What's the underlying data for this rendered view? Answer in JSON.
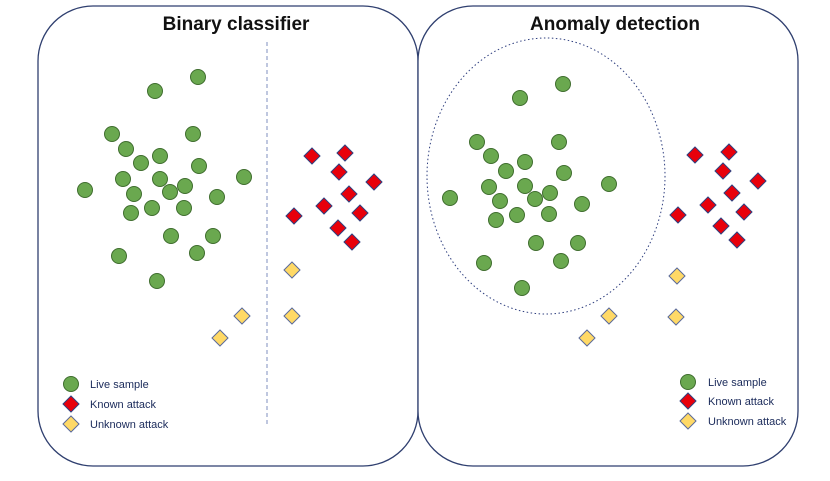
{
  "colors": {
    "live": "#6aa84f",
    "live_stroke": "#3f6d2e",
    "known": "#e8000b",
    "known_stroke": "#2f3f7f",
    "unknown": "#ffd966",
    "unknown_stroke": "#5a6a9a",
    "frame": "#2f3f6f",
    "divider": "#7f8fbf"
  },
  "panels": [
    {
      "id": "binary",
      "title": "Binary classifier",
      "legend": [
        {
          "type": "live",
          "label": "Live sample"
        },
        {
          "type": "known",
          "label": "Known attack"
        },
        {
          "type": "unknown",
          "label": "Unknown attack"
        }
      ]
    },
    {
      "id": "anomaly",
      "title": "Anomaly detection",
      "legend": [
        {
          "type": "live",
          "label": "Live sample"
        },
        {
          "type": "known",
          "label": "Known attack"
        },
        {
          "type": "unknown",
          "label": "Unknown attack"
        }
      ]
    }
  ]
}
